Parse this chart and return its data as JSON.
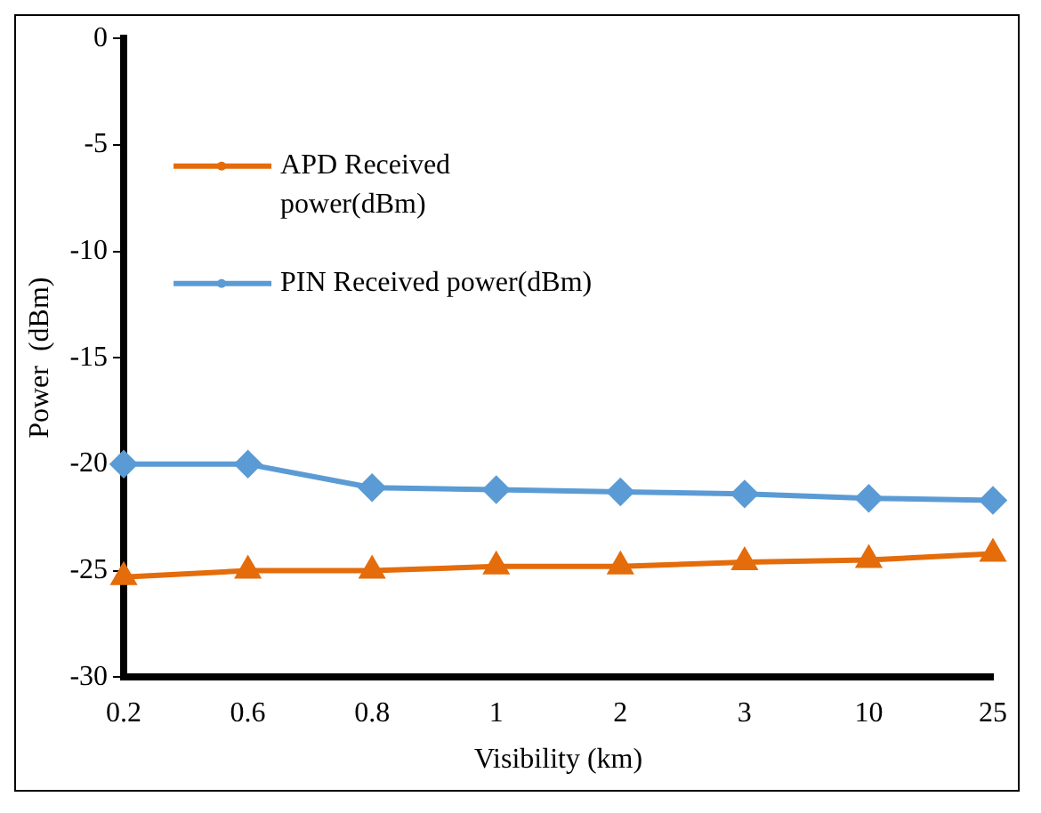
{
  "chart_data": {
    "type": "line",
    "xlabel": "Visibility (km)",
    "ylabel": "Power  (dBm)",
    "categories": [
      "0.2",
      "0.6",
      "0.8",
      "1",
      "2",
      "3",
      "10",
      "25"
    ],
    "series": [
      {
        "name": "APD Received power(dBm)",
        "color": "#e46c0a",
        "marker": "triangle",
        "values": [
          -25.3,
          -25.0,
          -25.0,
          -24.8,
          -24.8,
          -24.6,
          -24.5,
          -24.2
        ]
      },
      {
        "name": "PIN Received power(dBm)",
        "color": "#5b9bd5",
        "marker": "diamond",
        "values": [
          -20.0,
          -20.0,
          -21.1,
          -21.2,
          -21.3,
          -21.4,
          -21.6,
          -21.7
        ]
      }
    ],
    "ylim": [
      -30,
      0
    ],
    "yticks": [
      -30,
      -25,
      -20,
      -15,
      -10,
      -5,
      0
    ],
    "grid": false,
    "legend": "left"
  }
}
